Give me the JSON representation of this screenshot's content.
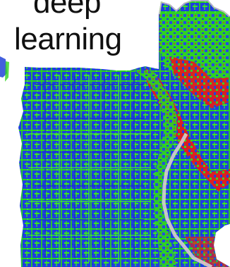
{
  "caption": {
    "line1": "deep",
    "line2": "learning"
  },
  "figure": {
    "icon": "deviation-heatmap-figure",
    "colors": {
      "background": "#ffffff",
      "low": "#1f3fe0",
      "mid": "#33e51f",
      "high": "#e51b1b",
      "edge": "#d9c7c7"
    }
  }
}
